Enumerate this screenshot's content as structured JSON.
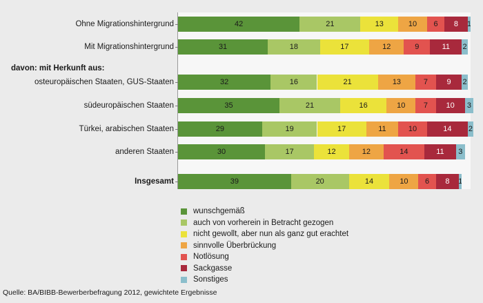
{
  "chart_data": {
    "type": "bar",
    "orientation": "horizontal",
    "stacked": true,
    "group_heading": "davon: mit Herkunft aus:",
    "categories": [
      "Ohne Migrationshintergrund",
      "Mit Migrationshintergrund",
      "osteuropäischen Staaten, GUS-Staaten",
      "südeuropäischen Staaten",
      "Türkei, arabischen Staaten",
      "anderen Staaten",
      "Insgesamt"
    ],
    "bold_categories": [
      "Insgesamt"
    ],
    "series": [
      {
        "name": "wunschgemäß",
        "color": "#5a9439",
        "values": [
          42,
          31,
          32,
          35,
          29,
          30,
          39
        ]
      },
      {
        "name": "auch von vorherein in Betracht gezogen",
        "color": "#a9c765",
        "values": [
          21,
          18,
          16,
          21,
          19,
          17,
          20
        ]
      },
      {
        "name": "nicht gewollt, aber nun als ganz gut erachtet",
        "color": "#ebe23a",
        "values": [
          13,
          17,
          21,
          16,
          17,
          12,
          14
        ]
      },
      {
        "name": "sinnvolle Überbrückung",
        "color": "#eea544",
        "values": [
          10,
          12,
          13,
          10,
          11,
          12,
          10
        ]
      },
      {
        "name": "Notlösung",
        "color": "#e2534f",
        "values": [
          6,
          9,
          7,
          7,
          10,
          14,
          6
        ]
      },
      {
        "name": "Sackgasse",
        "color": "#a8293c",
        "values": [
          8,
          11,
          9,
          10,
          14,
          11,
          8
        ]
      },
      {
        "name": "Sonstiges",
        "color": "#8bbecb",
        "values": [
          1,
          2,
          2,
          3,
          2,
          3,
          1
        ]
      }
    ],
    "xlim": [
      0,
      101
    ],
    "source": "Quelle: BA/BIBB-Bewerberbefragung 2012, gewichtete Ergebnisse"
  }
}
